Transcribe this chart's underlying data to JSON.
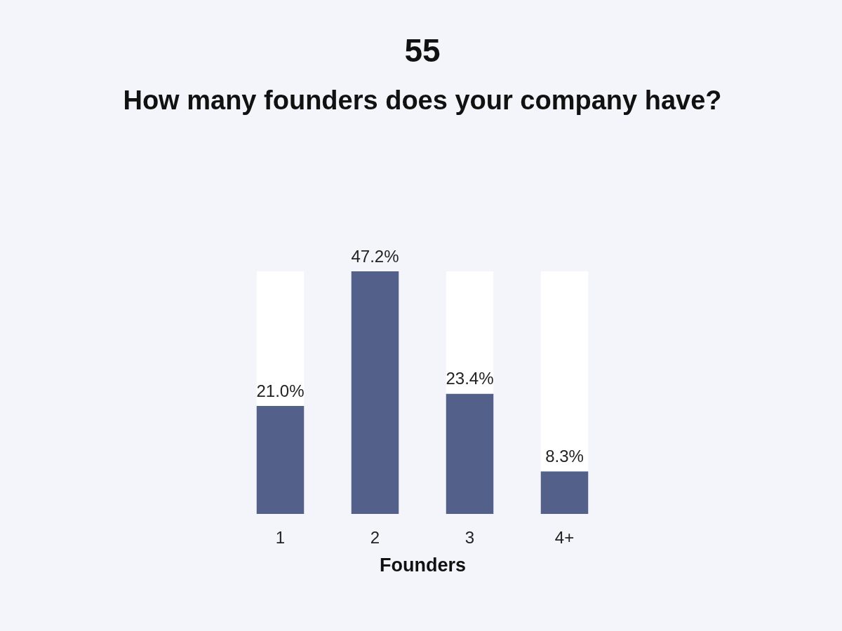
{
  "chart_data": {
    "type": "bar",
    "title": "55",
    "subtitle": "How many founders does your company have?",
    "xlabel": "Founders",
    "categories": [
      "1",
      "2",
      "3",
      "4+"
    ],
    "stacked": true,
    "grid": false,
    "legend": false,
    "series": [
      {
        "color": "#53608a",
        "values": [
          21.0,
          47.2,
          23.4,
          8.3
        ],
        "value_labels": [
          "21.0%",
          "47.2%",
          "23.4%",
          "8.3%"
        ]
      },
      {
        "color": "#ffffff",
        "values": [
          26.2,
          0,
          23.8,
          38.9
        ]
      }
    ]
  }
}
